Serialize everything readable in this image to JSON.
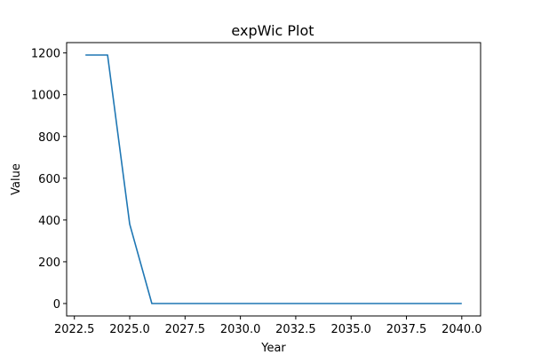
{
  "chart_data": {
    "type": "line",
    "title": "expWic Plot",
    "xlabel": "Year",
    "ylabel": "Value",
    "xlim": [
      2022.15,
      2040.85
    ],
    "ylim": [
      -59.5,
      1249.5
    ],
    "x_ticks": [
      2022.5,
      2025.0,
      2027.5,
      2030.0,
      2032.5,
      2035.0,
      2037.5,
      2040.0
    ],
    "x_tick_labels": [
      "2022.5",
      "2025.0",
      "2027.5",
      "2030.0",
      "2032.5",
      "2035.0",
      "2037.5",
      "2040.0"
    ],
    "y_ticks": [
      0,
      200,
      400,
      600,
      800,
      1000,
      1200
    ],
    "y_tick_labels": [
      "0",
      "200",
      "400",
      "600",
      "800",
      "1000",
      "1200"
    ],
    "grid": false,
    "series": [
      {
        "color": "#1f77b4",
        "x": [
          2023,
          2024,
          2025,
          2026,
          2027,
          2028,
          2029,
          2030,
          2031,
          2032,
          2033,
          2034,
          2035,
          2036,
          2037,
          2038,
          2039,
          2040
        ],
        "values": [
          1190,
          1190,
          380,
          0,
          0,
          0,
          0,
          0,
          0,
          0,
          0,
          0,
          0,
          0,
          0,
          0,
          0,
          0
        ]
      }
    ]
  }
}
